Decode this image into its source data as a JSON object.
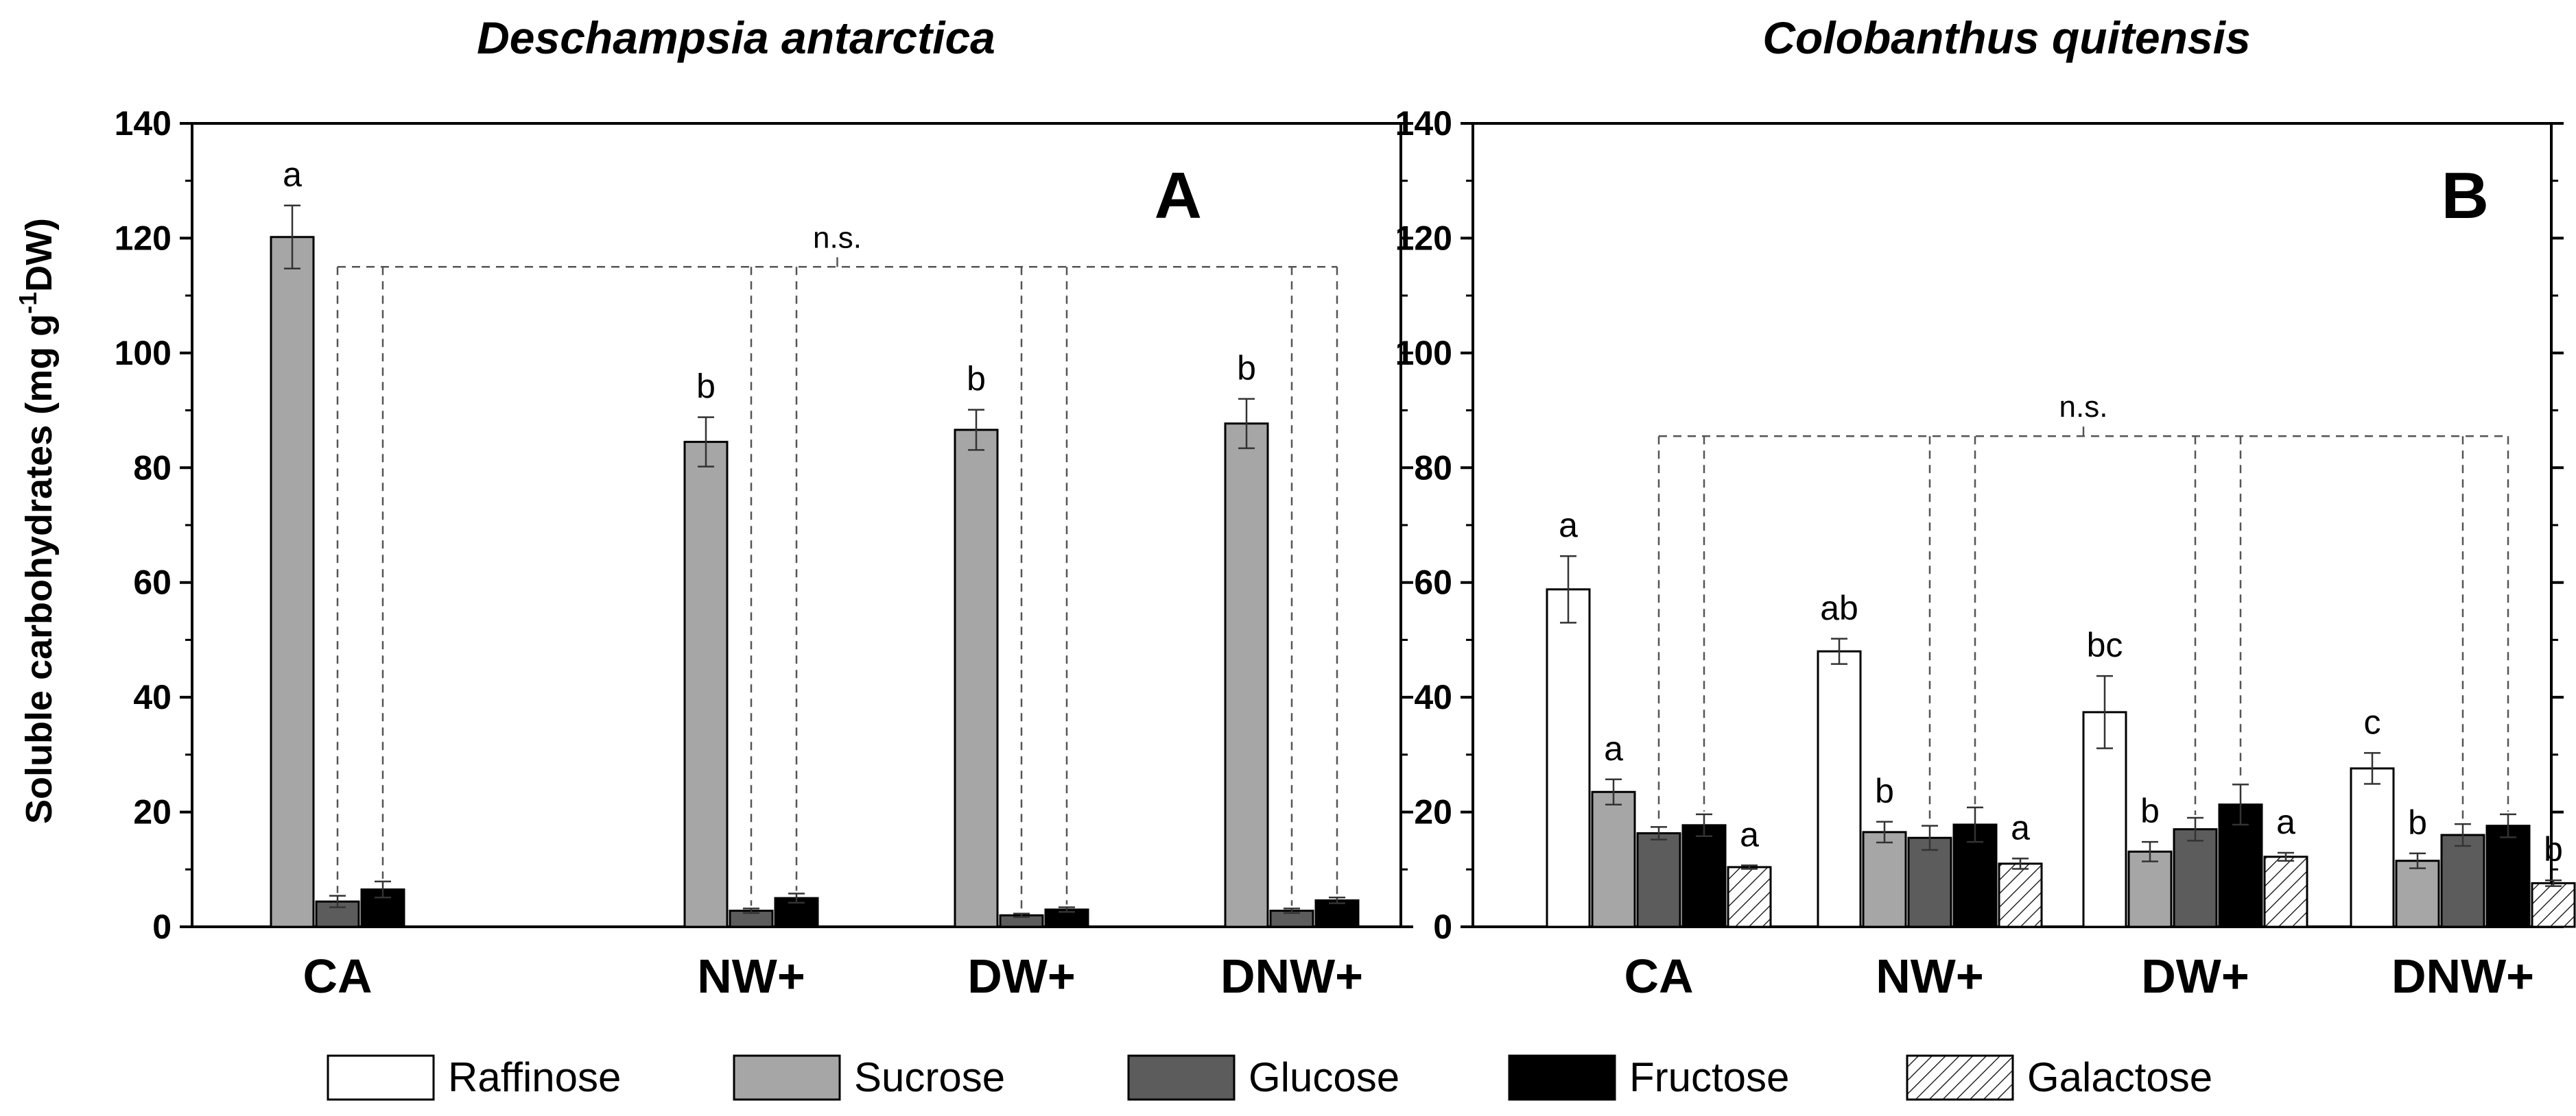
{
  "legend": {
    "items": [
      {
        "name": "Raffinose",
        "fill": "#ffffff",
        "pattern": "none"
      },
      {
        "name": "Sucrose",
        "fill": "#a6a6a6",
        "pattern": "none"
      },
      {
        "name": "Glucose",
        "fill": "#5c5c5c",
        "pattern": "none"
      },
      {
        "name": "Fructose",
        "fill": "#000000",
        "pattern": "none"
      },
      {
        "name": "Galactose",
        "fill": "#ffffff",
        "pattern": "hatch"
      }
    ]
  },
  "chart_data": [
    {
      "type": "bar",
      "panel": "A",
      "title": "Deschampsia antarctica",
      "ylabel_main": "Soluble carbohydrates (mg g",
      "ylabel_sup": "-1",
      "ylabel_end": "DW)",
      "ylim": [
        0,
        140
      ],
      "yticks": [
        0,
        20,
        40,
        60,
        80,
        100,
        120,
        140
      ],
      "categories": [
        "CA",
        "NW+",
        "DW+",
        "DNW+"
      ],
      "series": [
        {
          "name": "Sucrose",
          "values": [
            120.2,
            84.5,
            86.6,
            87.7
          ],
          "errors": [
            5.5,
            4.3,
            3.5,
            4.3
          ],
          "labels": [
            "a",
            "b",
            "b",
            "b"
          ]
        },
        {
          "name": "Glucose",
          "values": [
            4.4,
            2.8,
            2.0,
            2.8
          ],
          "errors": [
            1.0,
            0.4,
            0.3,
            0.4
          ],
          "labels": [
            "",
            "",
            "",
            ""
          ]
        },
        {
          "name": "Fructose",
          "values": [
            6.5,
            5.0,
            3.0,
            4.6
          ],
          "errors": [
            1.4,
            0.8,
            0.4,
            0.5
          ],
          "labels": [
            "",
            "",
            "",
            ""
          ]
        }
      ],
      "ns_label": "n.s.",
      "ns_level": 115
    },
    {
      "type": "bar",
      "panel": "B",
      "title": "Colobanthus quitensis",
      "ylim": [
        0,
        140
      ],
      "yticks": [
        0,
        20,
        40,
        60,
        80,
        100,
        120,
        140
      ],
      "categories": [
        "CA",
        "NW+",
        "DW+",
        "DNW+"
      ],
      "series": [
        {
          "name": "Raffinose",
          "values": [
            58.8,
            48.0,
            37.4,
            27.6
          ],
          "errors": [
            5.8,
            2.2,
            6.3,
            2.7
          ],
          "labels": [
            "a",
            "ab",
            "bc",
            "c"
          ]
        },
        {
          "name": "Sucrose",
          "values": [
            23.5,
            16.5,
            13.1,
            11.5
          ],
          "errors": [
            2.2,
            1.8,
            1.7,
            1.3
          ],
          "labels": [
            "a",
            "b",
            "b",
            "b"
          ]
        },
        {
          "name": "Glucose",
          "values": [
            16.3,
            15.5,
            17.0,
            16.0
          ],
          "errors": [
            1.1,
            2.1,
            2.0,
            1.9
          ],
          "labels": [
            "",
            "",
            "",
            ""
          ]
        },
        {
          "name": "Fructose",
          "values": [
            17.7,
            17.8,
            21.3,
            17.6
          ],
          "errors": [
            1.9,
            3.0,
            3.5,
            2.0
          ],
          "labels": [
            "",
            "",
            "",
            ""
          ]
        },
        {
          "name": "Galactose",
          "values": [
            10.4,
            11.0,
            12.2,
            7.6
          ],
          "errors": [
            0.3,
            0.9,
            0.7,
            0.5
          ],
          "labels": [
            "a",
            "a",
            "a",
            "b"
          ]
        }
      ],
      "ns_label": "n.s.",
      "ns_level": 85.5
    }
  ]
}
